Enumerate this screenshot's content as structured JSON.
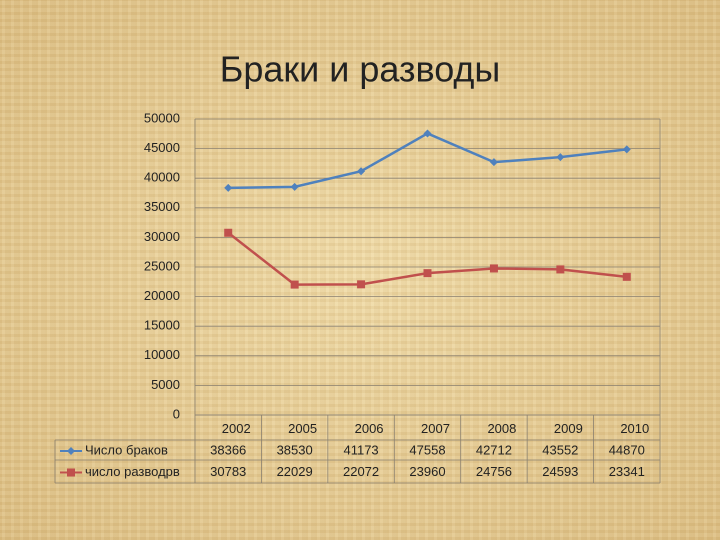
{
  "chart_data": {
    "type": "line",
    "title": "Браки и разводы",
    "categories": [
      "2002",
      "2005",
      "2006",
      "2007",
      "2008",
      "2009",
      "2010"
    ],
    "series": [
      {
        "name": "Число браков",
        "color": "#4f81bd",
        "marker": "diamond",
        "values": [
          38366,
          38530,
          41173,
          47558,
          42712,
          43552,
          44870
        ]
      },
      {
        "name": "число разводрв",
        "color": "#c0504d",
        "marker": "square",
        "values": [
          30783,
          22029,
          22072,
          23960,
          24756,
          24593,
          23341
        ]
      }
    ],
    "ylim": [
      0,
      50000
    ],
    "yticks": [
      0,
      5000,
      10000,
      15000,
      20000,
      25000,
      30000,
      35000,
      40000,
      45000,
      50000
    ],
    "grid": true,
    "data_table": true
  }
}
